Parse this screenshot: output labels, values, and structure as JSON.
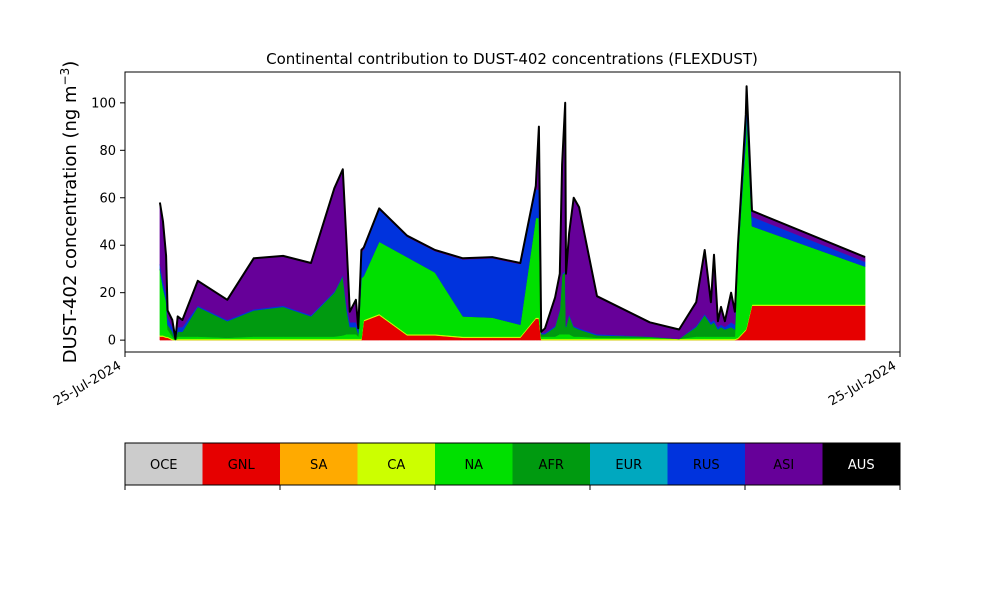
{
  "chart_data": {
    "type": "area",
    "title": "Continental contribution to DUST-402 concentrations (FLEXDUST)",
    "ylabel": "DUST-402 concentration (ng m$^{-3}$)",
    "ylabel_main": "DUST-402 concentration (ng m",
    "ylabel_sup": "−3",
    "ylabel_close": ")",
    "xlabel": "",
    "ylim": [
      -5,
      113
    ],
    "xlim": [
      0,
      100
    ],
    "yticks": [
      0,
      20,
      40,
      60,
      80,
      100
    ],
    "xtick_labels": [
      "25-Jul-2024",
      "25-Jul-2024"
    ],
    "grid": false,
    "x": [
      4.5,
      4.9,
      5.3,
      5.5,
      6.1,
      6.5,
      6.8,
      7.4,
      9.4,
      13.2,
      16.6,
      20.4,
      24.0,
      27.0,
      28.1,
      28.6,
      29.0,
      29.8,
      30.1,
      30.5,
      30.8,
      32.8,
      36.4,
      40.0,
      43.6,
      47.4,
      51.0,
      53.0,
      53.4,
      53.7,
      54.2,
      55.5,
      56.1,
      56.4,
      56.8,
      56.9,
      57.3,
      57.9,
      58.6,
      60.9,
      67.7,
      71.5,
      73.7,
      74.8,
      75.6,
      76.0,
      76.5,
      76.9,
      77.4,
      78.2,
      78.7,
      79.1,
      80.1,
      80.2,
      80.9,
      95.5
    ],
    "series": [
      {
        "name": "GNL",
        "color": "#e60000",
        "values": [
          1.5,
          1.5,
          1,
          1,
          0,
          0,
          0,
          0,
          0,
          0,
          0,
          0,
          0,
          0,
          0,
          0,
          0,
          0,
          0,
          0,
          8,
          10.5,
          2,
          2,
          1,
          1,
          1,
          9,
          9,
          0,
          0,
          0,
          0,
          0,
          0,
          0,
          0,
          0,
          0,
          0,
          0,
          0,
          0,
          0,
          0,
          0,
          0,
          0,
          0,
          0,
          0,
          0.5,
          4,
          5,
          14.5,
          14.5
        ]
      },
      {
        "name": "CA",
        "color": "#ccff00",
        "values": [
          0.5,
          0.5,
          0.5,
          0.5,
          0.5,
          0,
          0.5,
          0.5,
          0.5,
          0.5,
          0.5,
          0.5,
          0.5,
          0.5,
          0.5,
          0.5,
          0.5,
          0.5,
          0.5,
          0.5,
          0.5,
          0.5,
          0.5,
          0.5,
          0.5,
          0.5,
          0.5,
          0.5,
          0.5,
          0.5,
          0.5,
          0.5,
          0.5,
          0.5,
          0.5,
          0.5,
          0.5,
          0.5,
          0.5,
          0.5,
          0.5,
          0.5,
          0.5,
          0.5,
          0.5,
          0.5,
          0.5,
          0.5,
          0.5,
          0.5,
          0.5,
          0.5,
          0.5,
          0.5,
          0.5,
          0.5
        ]
      },
      {
        "name": "NA",
        "color": "#00e000",
        "values": [
          28,
          20,
          15,
          3,
          1,
          0,
          1,
          1,
          1,
          0.5,
          1,
          1,
          1,
          1,
          1.5,
          2,
          2,
          2,
          1,
          25.5,
          18.5,
          30.5,
          32.5,
          26,
          8.5,
          8,
          5,
          42,
          42,
          1,
          1,
          1,
          2,
          2,
          2,
          2,
          2,
          1,
          1,
          0.5,
          0.5,
          0,
          1,
          1,
          1,
          1,
          1,
          1,
          1,
          1,
          1,
          35,
          80,
          90,
          33,
          16
        ]
      },
      {
        "name": "AFR",
        "color": "#009a10",
        "values": [
          0,
          0,
          0,
          2,
          2,
          0,
          2,
          2,
          12.5,
          7,
          11,
          12.5,
          8.5,
          18.5,
          25,
          10,
          3,
          3,
          1,
          0,
          0,
          0,
          0,
          0,
          0,
          0,
          0,
          0,
          0,
          1,
          1,
          4,
          10,
          25,
          26,
          3,
          8,
          4,
          3,
          1,
          0.5,
          0,
          4,
          9,
          5,
          6,
          3,
          4,
          3,
          4,
          3,
          0,
          0,
          0,
          0,
          0
        ]
      },
      {
        "name": "RUS",
        "color": "#0033dd",
        "values": [
          2,
          3,
          3,
          3,
          2,
          0,
          2,
          2,
          0.5,
          0.5,
          0.5,
          0.5,
          0.5,
          0.5,
          0.5,
          2,
          2,
          2,
          2,
          11,
          11,
          13.5,
          8.5,
          9,
          24,
          25,
          25.5,
          12,
          12,
          0.5,
          0.5,
          0.5,
          0.5,
          0.5,
          0.5,
          0.5,
          0.5,
          0.5,
          0.5,
          0.5,
          0,
          0,
          0.5,
          0.5,
          1,
          1,
          1,
          1,
          1,
          2,
          2,
          2,
          8,
          9,
          4,
          2
        ]
      },
      {
        "name": "ASI",
        "color": "#660099",
        "values": [
          26,
          25,
          16,
          3,
          3,
          0.5,
          4.5,
          3,
          10.5,
          8.5,
          21.5,
          21,
          22,
          43.5,
          44.5,
          25,
          4.5,
          9.5,
          0.5,
          1,
          1,
          0.5,
          0.5,
          0.5,
          0.5,
          0.5,
          0.5,
          1.5,
          26.5,
          0.5,
          2,
          12,
          15,
          46,
          71,
          22,
          34,
          54,
          51,
          16,
          6,
          4,
          10,
          27,
          8.5,
          27.5,
          2.5,
          7.5,
          2.5,
          12.5,
          5.5,
          2.5,
          2.5,
          2.5,
          2.5,
          2
        ]
      }
    ],
    "total_line_color": "#000000",
    "colorbar": {
      "labels": [
        "OCE",
        "GNL",
        "SA",
        "CA",
        "NA",
        "AFR",
        "EUR",
        "RUS",
        "ASI",
        "AUS"
      ],
      "colors": [
        "#cccccc",
        "#e60000",
        "#ffaa00",
        "#ccff00",
        "#00e000",
        "#009a10",
        "#00a8bf",
        "#0033dd",
        "#660099",
        "#000000"
      ],
      "label_colors": [
        "#000000",
        "#000000",
        "#000000",
        "#000000",
        "#000000",
        "#000000",
        "#000000",
        "#000000",
        "#000000",
        "#ffffff"
      ]
    }
  }
}
